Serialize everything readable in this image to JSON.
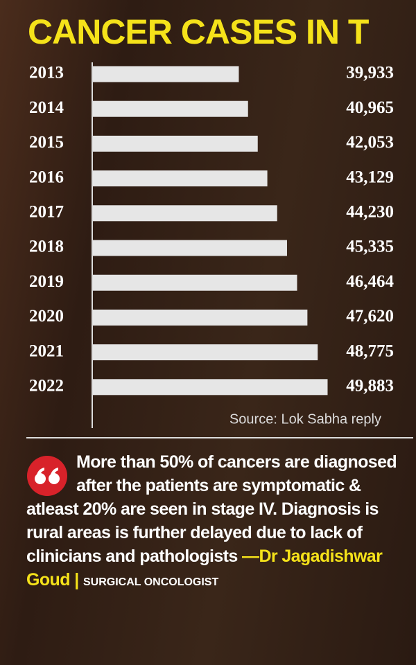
{
  "chart_data": {
    "type": "bar",
    "orientation": "horizontal",
    "title": "CANCER CASES IN T",
    "categories": [
      "2013",
      "2014",
      "2015",
      "2016",
      "2017",
      "2018",
      "2019",
      "2020",
      "2021",
      "2022"
    ],
    "values": [
      39933,
      40965,
      42053,
      43129,
      44230,
      45335,
      46464,
      47620,
      48775,
      49883
    ],
    "value_labels": [
      "39,933",
      "40,965",
      "42,053",
      "43,129",
      "44,230",
      "45,335",
      "46,464",
      "47,620",
      "48,775",
      "49,883"
    ],
    "color": "#e6e6e6",
    "xlim": [
      23500,
      50000
    ],
    "source": "Source: Lok Sabha reply"
  },
  "quote": {
    "text": "More than 50% of cancers are diagnosed after the patients are symptomatic & atleast 20% are seen in stage IV. Diagnosis is rural areas is further delayed due to lack of clinicians and pathologists",
    "author": "—Dr Jagadishwar Goud",
    "role": "SURGICAL ONCOLOGIST"
  }
}
